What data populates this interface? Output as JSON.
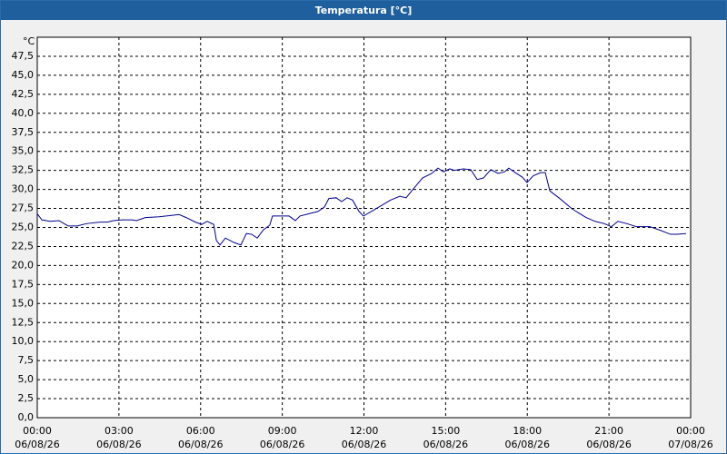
{
  "chart_data": {
    "type": "line",
    "title": "Temperatura [°C]",
    "y_unit": "°C",
    "x": [
      0,
      0.17,
      0.47,
      0.8,
      1.13,
      1.47,
      1.8,
      2.3,
      2.57,
      2.8,
      3.14,
      3.47,
      3.64,
      3.97,
      4.47,
      4.97,
      5.21,
      5.47,
      5.81,
      6.04,
      6.24,
      6.48,
      6.58,
      6.71,
      6.91,
      7.24,
      7.48,
      7.68,
      7.88,
      8.08,
      8.31,
      8.54,
      8.64,
      9.25,
      9.48,
      9.65,
      9.98,
      10.31,
      10.55,
      10.71,
      10.98,
      11.18,
      11.38,
      11.58,
      11.82,
      11.98,
      12.32,
      12.65,
      12.98,
      13.32,
      13.55,
      13.82,
      14.15,
      14.49,
      14.72,
      14.92,
      15.15,
      15.32,
      15.65,
      15.92,
      16.16,
      16.39,
      16.66,
      16.92,
      17.16,
      17.32,
      17.56,
      17.82,
      17.99,
      18.22,
      18.49,
      18.66,
      18.83,
      19.16,
      19.66,
      20.16,
      20.49,
      20.83,
      21.09,
      21.33,
      21.66,
      22.0,
      22.5,
      22.83,
      23.26,
      23.5,
      23.83
    ],
    "series": [
      {
        "name": "Temperatura",
        "color": "#00008b",
        "values": [
          26.8,
          26.0,
          25.8,
          25.9,
          25.2,
          25.2,
          25.5,
          25.7,
          25.7,
          25.9,
          26.0,
          26.0,
          25.9,
          26.3,
          26.4,
          26.6,
          26.7,
          26.3,
          25.7,
          25.4,
          25.8,
          25.4,
          23.3,
          22.7,
          23.6,
          23.0,
          22.7,
          24.2,
          24.1,
          23.6,
          24.7,
          25.3,
          26.5,
          26.5,
          25.9,
          26.5,
          26.8,
          27.1,
          27.7,
          28.8,
          28.9,
          28.4,
          28.9,
          28.6,
          27.1,
          26.5,
          27.2,
          27.9,
          28.6,
          29.1,
          28.9,
          30.1,
          31.5,
          32.1,
          32.8,
          32.3,
          32.7,
          32.5,
          32.7,
          32.6,
          31.3,
          31.5,
          32.6,
          32.1,
          32.3,
          32.8,
          32.2,
          31.6,
          30.9,
          31.8,
          32.2,
          32.2,
          29.8,
          28.9,
          27.4,
          26.3,
          25.8,
          25.5,
          25.1,
          25.8,
          25.5,
          25.1,
          25.1,
          24.7,
          24.1,
          24.1,
          24.2
        ]
      }
    ],
    "xlim": [
      0,
      24
    ],
    "xticks": [
      {
        "value": 0,
        "label": "00:00"
      },
      {
        "value": 3,
        "label": "03:00"
      },
      {
        "value": 6,
        "label": "06:00"
      },
      {
        "value": 9,
        "label": "09:00"
      },
      {
        "value": 12,
        "label": "12:00"
      },
      {
        "value": 15,
        "label": "15:00"
      },
      {
        "value": 18,
        "label": "18:00"
      },
      {
        "value": 21,
        "label": "21:00"
      },
      {
        "value": 24,
        "label": "00:00"
      }
    ],
    "xtick_dates": [
      "06/08/26",
      "06/08/26",
      "06/08/26",
      "06/08/26",
      "06/08/26",
      "06/08/26",
      "06/08/26",
      "06/08/26",
      "07/08/26"
    ],
    "ylim": [
      0,
      50
    ],
    "yticks": [
      {
        "value": 0,
        "label": "0,0"
      },
      {
        "value": 2.5,
        "label": "2,5"
      },
      {
        "value": 5,
        "label": "5,0"
      },
      {
        "value": 7.5,
        "label": "7,5"
      },
      {
        "value": 10,
        "label": "10,0"
      },
      {
        "value": 12.5,
        "label": "12,5"
      },
      {
        "value": 15,
        "label": "15,0"
      },
      {
        "value": 17.5,
        "label": "17,5"
      },
      {
        "value": 20,
        "label": "20,0"
      },
      {
        "value": 22.5,
        "label": "22,5"
      },
      {
        "value": 25,
        "label": "25,0"
      },
      {
        "value": 27.5,
        "label": "27,5"
      },
      {
        "value": 30,
        "label": "30,0"
      },
      {
        "value": 32.5,
        "label": "32,5"
      },
      {
        "value": 35,
        "label": "35,0"
      },
      {
        "value": 37.5,
        "label": "37,5"
      },
      {
        "value": 40,
        "label": "40,0"
      },
      {
        "value": 42.5,
        "label": "42,5"
      },
      {
        "value": 45,
        "label": "45,0"
      },
      {
        "value": 47.5,
        "label": "47,5"
      }
    ],
    "grid": true
  }
}
